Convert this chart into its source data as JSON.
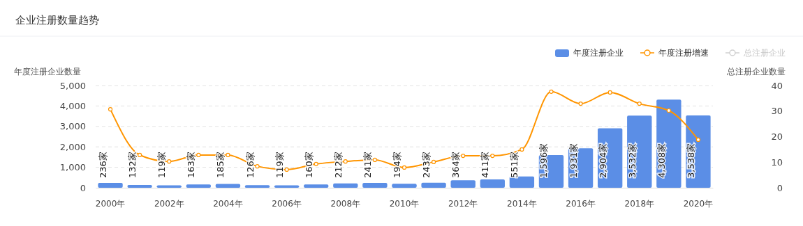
{
  "chart_data": {
    "type": "bar",
    "title": "企业注册数量趋势",
    "ylabel": "年度注册企业数量",
    "y2label": "总注册企业数量",
    "categories": [
      "2000年",
      null,
      "2002年",
      null,
      "2004年",
      null,
      "2006年",
      null,
      "2008年",
      null,
      "2010年",
      null,
      "2012年",
      null,
      "2014年",
      null,
      "2016年",
      null,
      "2018年",
      null,
      "2020年"
    ],
    "series": [
      {
        "name": "年度注册企业",
        "color": "#5b8ee6",
        "values": [
          236,
          132,
          119,
          163,
          185,
          126,
          119,
          160,
          212,
          241,
          194,
          243,
          364,
          411,
          551,
          1596,
          1931,
          2904,
          3532,
          4308,
          3538
        ],
        "value_labels": [
          "236家",
          "132家",
          "119家",
          "163家",
          "185家",
          "126家",
          "119家",
          "160家",
          "212家",
          "241家",
          "194家",
          "243家",
          "364家",
          "411家",
          "551家",
          "1,596家",
          "1,931家",
          "2,904家",
          "3,532家",
          "4,308家",
          "3,538家"
        ]
      },
      {
        "name": "年度注册增速",
        "type": "line",
        "axis": "y2",
        "color": "#ff9500",
        "marker": "circle",
        "values": [
          30.7,
          12.8,
          10.3,
          12.8,
          12.8,
          8.4,
          7.1,
          9.3,
          10.3,
          10.9,
          7.9,
          10.1,
          12.5,
          12.5,
          15.0,
          37.6,
          32.9,
          37.3,
          32.9,
          30.2,
          18.8
        ]
      },
      {
        "name": "总注册企业",
        "type": "line",
        "axis": "y2",
        "color": "#d0d0d0",
        "marker": "circle",
        "values": [
          null,
          null,
          null,
          null,
          null,
          null,
          null,
          null,
          null,
          null,
          null,
          null,
          null,
          null,
          null,
          null,
          null,
          null,
          null,
          null,
          null
        ]
      }
    ],
    "ylim": [
      0,
      5000
    ],
    "yticks": [
      {
        "value": 0,
        "label": "0"
      },
      {
        "value": 1000,
        "label": "1,000"
      },
      {
        "value": 2000,
        "label": "2,000"
      },
      {
        "value": 3000,
        "label": "3,000"
      },
      {
        "value": 4000,
        "label": "4,000"
      },
      {
        "value": 5000,
        "label": "5,000"
      }
    ],
    "y2lim": [
      0,
      40
    ],
    "y2ticks": [
      0,
      10,
      20,
      30,
      40
    ],
    "grid": "y",
    "legend": "top right"
  }
}
